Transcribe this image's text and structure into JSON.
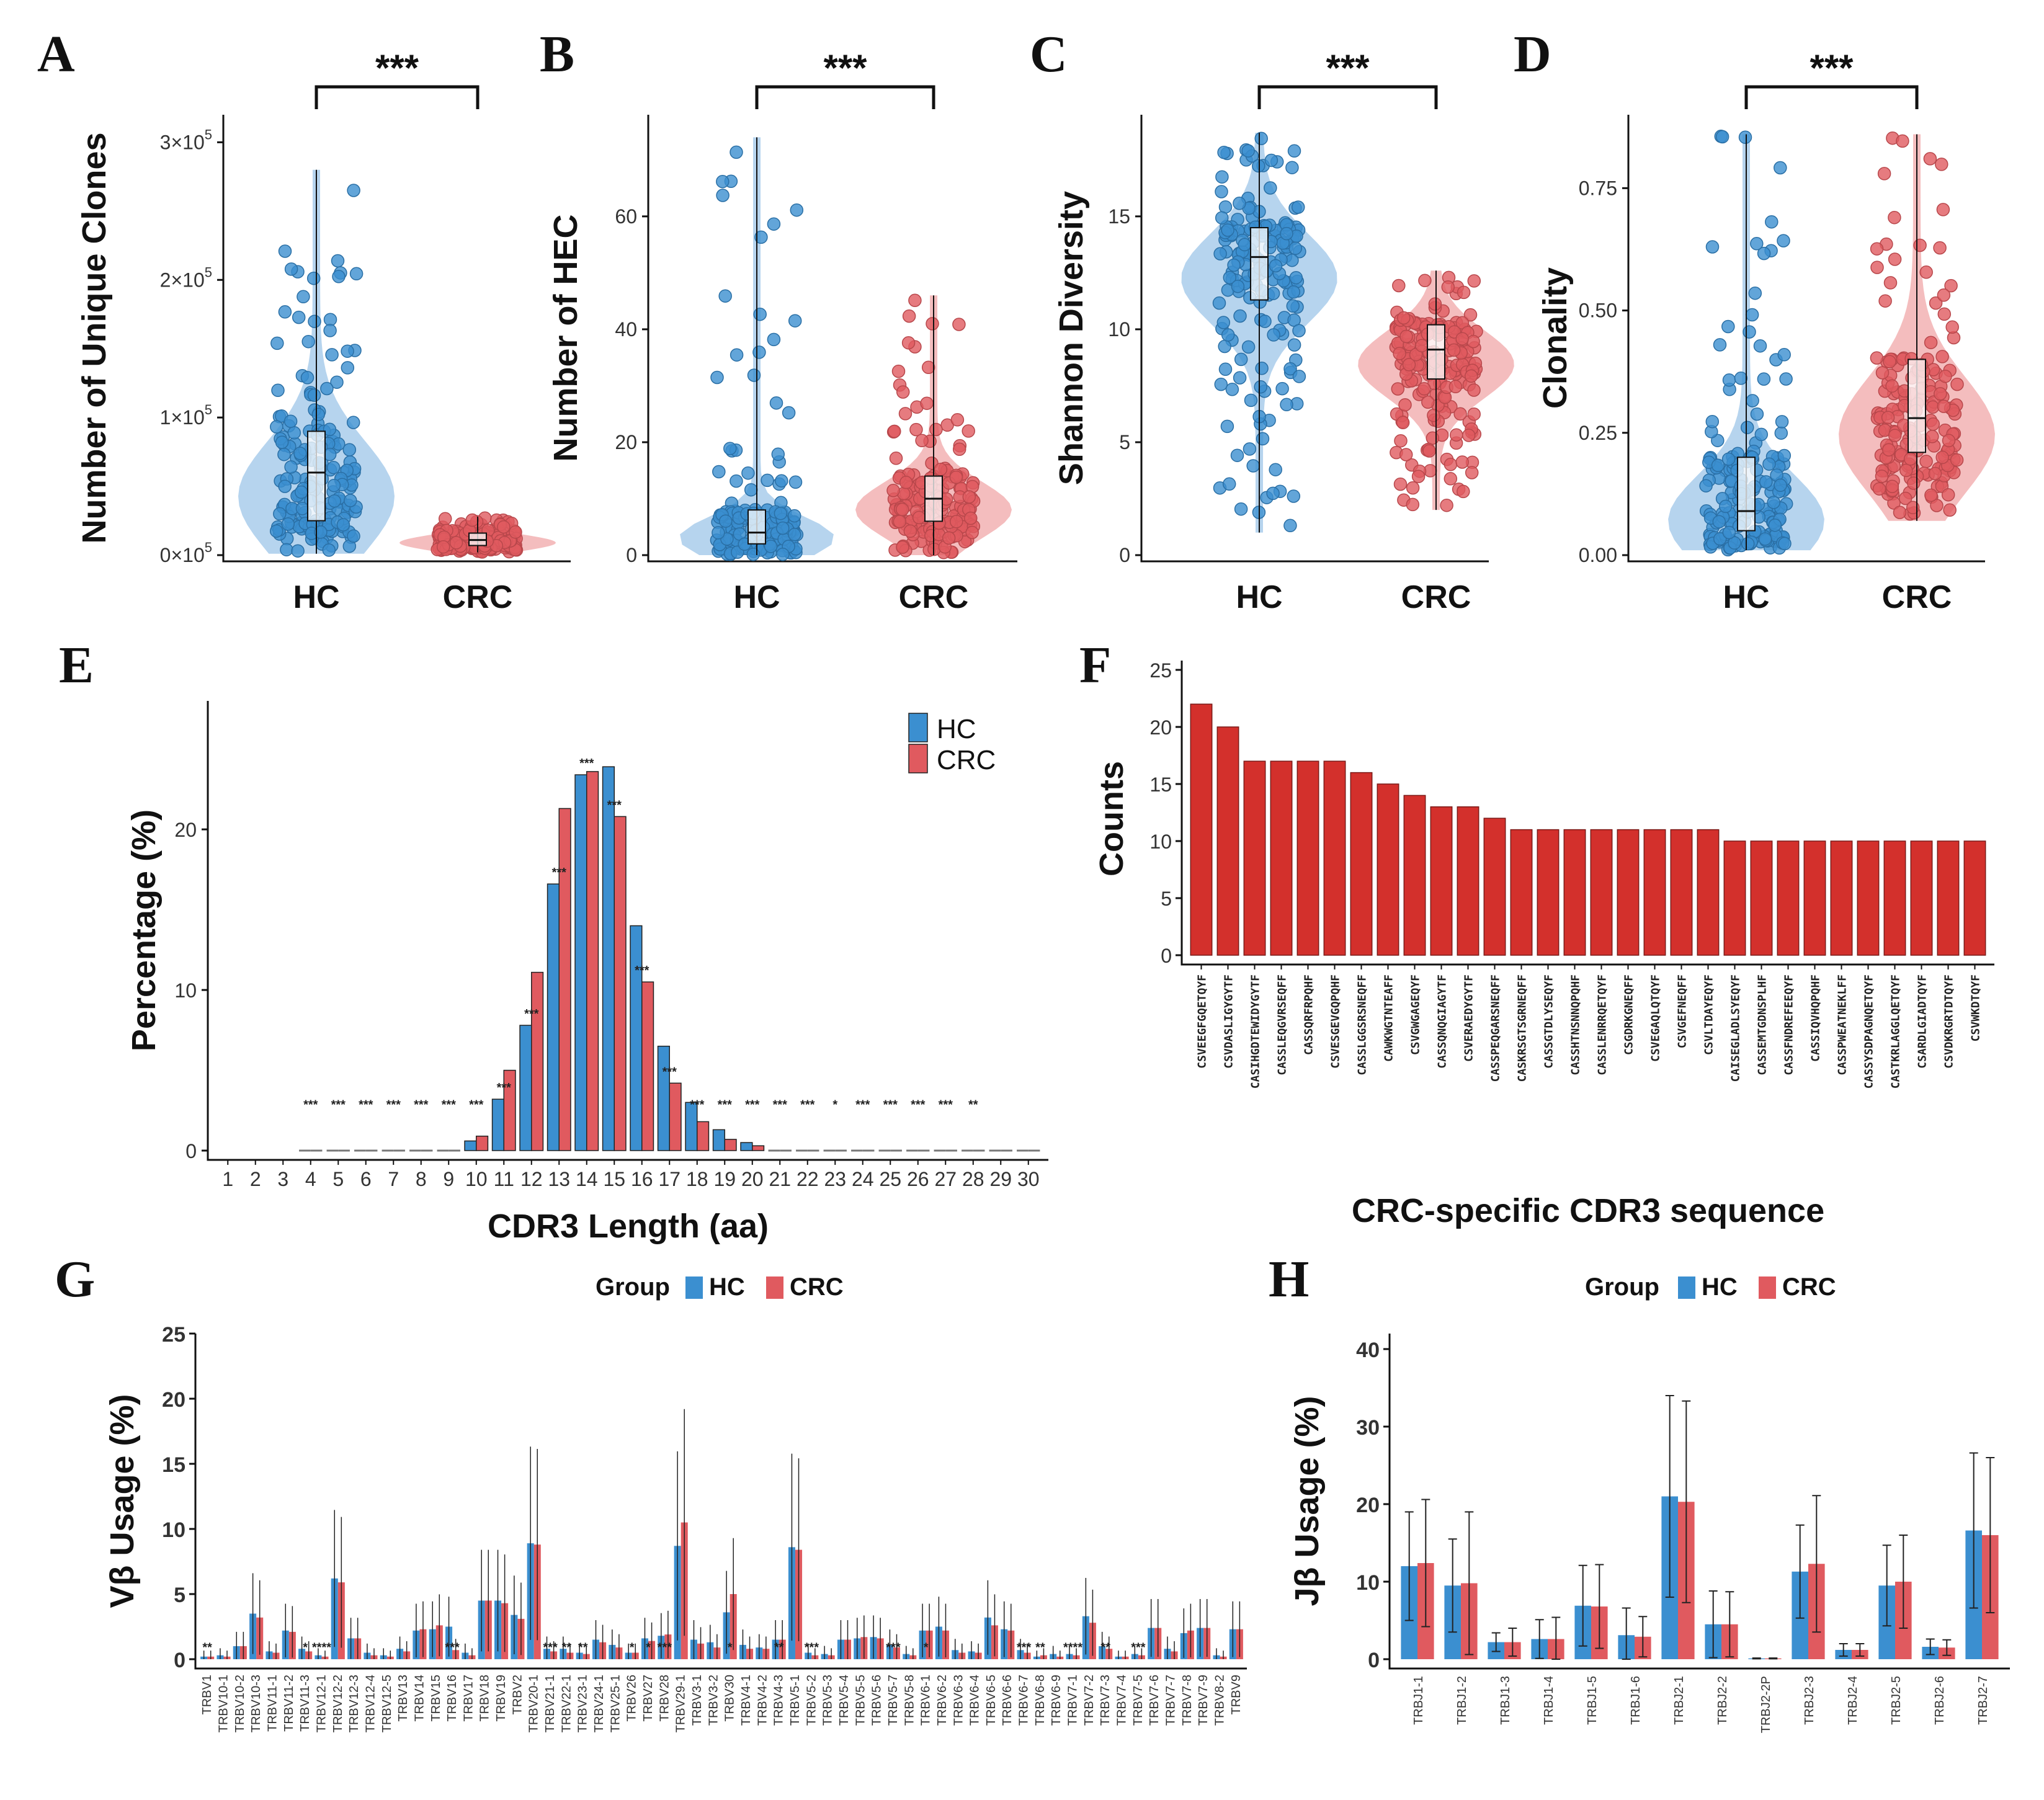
{
  "colors": {
    "hc": "#3B8FD0",
    "crc": "#E05A5F",
    "f_bar": "#D3302C",
    "hc_fill": "#A9CDEB",
    "crc_fill": "#F2B1B3"
  },
  "chart_data": [
    {
      "panel": "A",
      "type": "violin-scatter",
      "ylabel": "Number of Unique Clones",
      "categories": [
        "HC",
        "CRC"
      ],
      "ylim": [
        0,
        320000
      ],
      "yticks": [
        0,
        100000,
        200000,
        300000
      ],
      "ytick_labels": [
        "0×10",
        "1×10",
        "2×10",
        "3×10"
      ],
      "ytick_exp": "5",
      "significance": "***",
      "summary": [
        {
          "group": "HC",
          "min": 1000,
          "q1": 25000,
          "median": 60000,
          "q3": 90000,
          "max": 280000
        },
        {
          "group": "CRC",
          "min": 2000,
          "q1": 7000,
          "median": 11000,
          "q3": 16000,
          "max": 28000
        }
      ]
    },
    {
      "panel": "B",
      "type": "violin-scatter",
      "ylabel": "Number of HEC",
      "categories": [
        "HC",
        "CRC"
      ],
      "ylim": [
        0,
        78
      ],
      "yticks": [
        0,
        20,
        40,
        60
      ],
      "ytick_labels": [
        "0",
        "20",
        "40",
        "60"
      ],
      "significance": "***",
      "summary": [
        {
          "group": "HC",
          "min": 0,
          "q1": 2,
          "median": 4,
          "q3": 8,
          "max": 74
        },
        {
          "group": "CRC",
          "min": 0,
          "q1": 6,
          "median": 10,
          "q3": 14,
          "max": 46
        }
      ]
    },
    {
      "panel": "C",
      "type": "violin-scatter",
      "ylabel": "Shannon Diversity",
      "categories": [
        "HC",
        "CRC"
      ],
      "ylim": [
        0,
        19.5
      ],
      "yticks": [
        0,
        5,
        10,
        15
      ],
      "ytick_labels": [
        "0",
        "5",
        "10",
        "15"
      ],
      "significance": "***",
      "summary": [
        {
          "group": "HC",
          "min": 1,
          "q1": 11.3,
          "median": 13.2,
          "q3": 14.5,
          "max": 18.7
        },
        {
          "group": "CRC",
          "min": 2,
          "q1": 7.8,
          "median": 9.1,
          "q3": 10.2,
          "max": 12.6
        }
      ]
    },
    {
      "panel": "D",
      "type": "violin-scatter",
      "ylabel": "Clonality",
      "categories": [
        "HC",
        "CRC"
      ],
      "ylim": [
        0,
        0.9
      ],
      "yticks": [
        0,
        0.25,
        0.5,
        0.75
      ],
      "ytick_labels": [
        "0.00",
        "0.25",
        "0.50",
        "0.75"
      ],
      "significance": "***",
      "summary": [
        {
          "group": "HC",
          "min": 0.01,
          "q1": 0.05,
          "median": 0.09,
          "q3": 0.2,
          "max": 0.86
        },
        {
          "group": "CRC",
          "min": 0.07,
          "q1": 0.21,
          "median": 0.28,
          "q3": 0.4,
          "max": 0.86
        }
      ]
    },
    {
      "panel": "E",
      "type": "bar",
      "xlabel": "CDR3 Length (aa)",
      "ylabel": "Percentage (%)",
      "ylim": [
        0,
        28
      ],
      "yticks": [
        0,
        10,
        20
      ],
      "ytick_labels": [
        "0",
        "10",
        "20"
      ],
      "legend": [
        "HC",
        "CRC"
      ],
      "categories": [
        "1",
        "2",
        "3",
        "4",
        "5",
        "6",
        "7",
        "8",
        "9",
        "10",
        "11",
        "12",
        "13",
        "14",
        "15",
        "16",
        "17",
        "18",
        "19",
        "20",
        "21",
        "22",
        "23",
        "24",
        "25",
        "26",
        "27",
        "28",
        "29",
        "30"
      ],
      "series": [
        {
          "name": "HC",
          "values": [
            0,
            0,
            0,
            0.05,
            0.05,
            0.05,
            0.05,
            0.1,
            0.15,
            0.6,
            3.2,
            7.8,
            16.6,
            23.4,
            23.9,
            14.0,
            6.5,
            3.0,
            1.3,
            0.5,
            0.2,
            0.1,
            0.05,
            0.05,
            0.03,
            0.02,
            0.02,
            0.02,
            0.01,
            0.01
          ]
        },
        {
          "name": "CRC",
          "values": [
            0,
            0,
            0,
            0.05,
            0.05,
            0.05,
            0.05,
            0.1,
            0.2,
            0.9,
            5.0,
            11.1,
            21.3,
            23.6,
            20.8,
            10.5,
            4.2,
            1.8,
            0.7,
            0.3,
            0.1,
            0.05,
            0.05,
            0.05,
            0.03,
            0.02,
            0.02,
            0.02,
            0.01,
            0.01
          ]
        }
      ],
      "significance": [
        "",
        "",
        "",
        "***",
        "***",
        "***",
        "***",
        "***",
        "***",
        "***",
        "***",
        "***",
        "***",
        "***",
        "***",
        "***",
        "***",
        "***",
        "***",
        "***",
        "***",
        "***",
        "*",
        "***",
        "***",
        "***",
        "***",
        "**",
        "",
        ""
      ]
    },
    {
      "panel": "F",
      "type": "bar",
      "xlabel": "CRC-specific CDR3 sequence",
      "ylabel": "Counts",
      "ylim": [
        0,
        25
      ],
      "yticks": [
        0,
        5,
        10,
        15,
        20,
        25
      ],
      "ytick_labels": [
        "0",
        "5",
        "10",
        "15",
        "20",
        "25"
      ],
      "categories": [
        "CSVEEGFGQETQYF",
        "CSVDASLIGYGYTF",
        "CASIHGDTEWIDYGYTF",
        "CASSLEQGVRSEQFF",
        "CASSQRFRPQHF",
        "CSVESGEVGQPQHF",
        "CASSLGGSRSNEQFF",
        "CAWKWGTNTEAFF",
        "CSVGWGAGEQYF",
        "CASSQNQGIAGYTF",
        "CSVERAEDYGYTF",
        "CASSPEQGARSNEQFF",
        "CASKRSGTSGRNEQFF",
        "CASSGTDLYSEQYF",
        "CASSHTNSNNQPQHF",
        "CASSLENRRQETQYF",
        "CSGDRKGNEQFF",
        "CSVEGAQLQTQYF",
        "CSVGEFNEQFF",
        "CSVLTDAYEQYF",
        "CAISEGLADLSYEQYF",
        "CASSEMTGDNSPLHF",
        "CASSFNDREFEEQYF",
        "CASSIQVHQPQHF",
        "CASSPWEATNEKLFF",
        "CASSYSDPAGNQETQYF",
        "CASTKRLAGGLQETQYF",
        "CSARDLGIADTQYF",
        "CSVDKRGRTDTQYF",
        "CSVWKDTQYF"
      ],
      "values": [
        22,
        20,
        17,
        17,
        17,
        17,
        16,
        15,
        14,
        13,
        13,
        12,
        11,
        11,
        11,
        11,
        11,
        11,
        11,
        11,
        10,
        10,
        10,
        10,
        10,
        10,
        10,
        10,
        10,
        10
      ]
    },
    {
      "panel": "G",
      "type": "bar",
      "ylabel": "Vβ Usage (%)",
      "legend_title": "Group",
      "legend": [
        "HC",
        "CRC"
      ],
      "ylim": [
        0,
        25
      ],
      "yticks": [
        0,
        5,
        10,
        15,
        20,
        25
      ],
      "ytick_labels": [
        "0",
        "5",
        "10",
        "15",
        "20",
        "25"
      ],
      "categories": [
        "TRBV1",
        "TRBV10-1",
        "TRBV10-2",
        "TRBV10-3",
        "TRBV11-1",
        "TRBV11-2",
        "TRBV11-3",
        "TRBV12-1",
        "TRBV12-2",
        "TRBV12-3",
        "TRBV12-4",
        "TRBV12-5",
        "TRBV13",
        "TRBV14",
        "TRBV15",
        "TRBV16",
        "TRBV17",
        "TRBV18",
        "TRBV19",
        "TRBV2",
        "TRBV20-1",
        "TRBV21-1",
        "TRBV22-1",
        "TRBV23-1",
        "TRBV24-1",
        "TRBV25-1",
        "TRBV26",
        "TRBV27",
        "TRBV28",
        "TRBV29-1",
        "TRBV3-1",
        "TRBV3-2",
        "TRBV30",
        "TRBV4-1",
        "TRBV4-2",
        "TRBV4-3",
        "TRBV5-1",
        "TRBV5-2",
        "TRBV5-3",
        "TRBV5-4",
        "TRBV5-5",
        "TRBV5-6",
        "TRBV5-7",
        "TRBV5-8",
        "TRBV6-1",
        "TRBV6-2",
        "TRBV6-3",
        "TRBV6-4",
        "TRBV6-5",
        "TRBV6-6",
        "TRBV6-7",
        "TRBV6-8",
        "TRBV6-9",
        "TRBV7-1",
        "TRBV7-2",
        "TRBV7-3",
        "TRBV7-4",
        "TRBV7-5",
        "TRBV7-6",
        "TRBV7-7",
        "TRBV7-8",
        "TRBV7-9",
        "TRBV8-2",
        "TRBV9"
      ],
      "series": [
        {
          "name": "HC",
          "values": [
            0.2,
            0.3,
            1.0,
            3.5,
            0.6,
            2.2,
            0.8,
            0.3,
            6.2,
            1.6,
            0.5,
            0.3,
            0.8,
            2.2,
            2.3,
            2.5,
            0.5,
            4.5,
            4.5,
            3.4,
            8.9,
            0.8,
            0.8,
            0.5,
            1.5,
            1.1,
            0.5,
            1.6,
            1.8,
            8.7,
            1.5,
            1.3,
            3.6,
            1.1,
            0.9,
            1.5,
            8.6,
            0.5,
            0.4,
            1.5,
            1.6,
            1.7,
            1.1,
            0.4,
            2.2,
            2.5,
            0.7,
            0.6,
            3.2,
            2.3,
            0.7,
            0.2,
            0.4,
            0.4,
            3.3,
            1.0,
            0.2,
            0.4,
            2.4,
            0.8,
            2.0,
            2.4,
            0.3,
            2.3
          ]
        },
        {
          "name": "CRC",
          "values": [
            0.2,
            0.2,
            1.0,
            3.2,
            0.5,
            2.1,
            0.6,
            0.2,
            5.9,
            1.6,
            0.3,
            0.2,
            0.6,
            2.3,
            2.6,
            0.7,
            0.3,
            4.5,
            4.3,
            3.1,
            8.8,
            0.6,
            0.5,
            0.4,
            1.3,
            0.9,
            0.5,
            1.4,
            1.9,
            10.5,
            1.2,
            0.9,
            5.0,
            0.8,
            0.8,
            1.5,
            8.4,
            0.3,
            0.3,
            1.5,
            1.7,
            1.6,
            0.9,
            0.3,
            2.2,
            2.2,
            0.5,
            0.5,
            2.6,
            2.2,
            0.5,
            0.3,
            0.2,
            0.3,
            2.8,
            0.8,
            0.2,
            0.3,
            2.4,
            0.6,
            2.2,
            2.4,
            0.2,
            2.3
          ]
        }
      ],
      "significance": [
        "**",
        "",
        "",
        "",
        "",
        "",
        "*",
        "****",
        "",
        "",
        "",
        "",
        "",
        "",
        "",
        "***",
        "",
        "",
        "",
        "",
        "",
        "***",
        "**",
        "**",
        "",
        "",
        "*",
        "*",
        "***",
        "",
        "",
        "",
        "*",
        "",
        "",
        "**",
        "",
        "***",
        "",
        "",
        "",
        "",
        "***",
        "",
        "*",
        "",
        "",
        "",
        "",
        "",
        "***",
        "**",
        "",
        "****",
        "",
        "**",
        "",
        "***",
        "",
        "",
        "",
        "",
        "",
        ""
      ]
    },
    {
      "panel": "H",
      "type": "bar",
      "ylabel": "Jβ Usage (%)",
      "legend_title": "Group",
      "legend": [
        "HC",
        "CRC"
      ],
      "ylim": [
        0,
        42
      ],
      "yticks": [
        0,
        10,
        20,
        30,
        40
      ],
      "ytick_labels": [
        "0",
        "10",
        "20",
        "30",
        "40"
      ],
      "categories": [
        "TRBJ1-1",
        "TRBJ1-2",
        "TRBJ1-3",
        "TRBJ1-4",
        "TRBJ1-5",
        "TRBJ1-6",
        "TRBJ2-1",
        "TRBJ2-2",
        "TRBJ2-2P",
        "TRBJ2-3",
        "TRBJ2-4",
        "TRBJ2-5",
        "TRBJ2-6",
        "TRBJ2-7"
      ],
      "series": [
        {
          "name": "HC",
          "values": [
            12,
            9.5,
            2.2,
            2.6,
            6.9,
            3.1,
            21,
            4.5,
            0.1,
            11.3,
            1.2,
            9.5,
            1.6,
            16.6
          ],
          "err": [
            7,
            6,
            1.2,
            2.5,
            5.2,
            3.5,
            13,
            4.3,
            0.05,
            6,
            0.8,
            5.2,
            1,
            10
          ]
        },
        {
          "name": "CRC",
          "values": [
            12.4,
            9.8,
            2.2,
            2.6,
            6.8,
            2.9,
            20.3,
            4.5,
            0.1,
            12.3,
            1.2,
            10,
            1.5,
            16
          ],
          "err": [
            8.2,
            9.2,
            1.8,
            2.8,
            5.4,
            2.6,
            13,
            4.2,
            0.05,
            8.8,
            0.8,
            6,
            1,
            10
          ]
        }
      ]
    }
  ]
}
